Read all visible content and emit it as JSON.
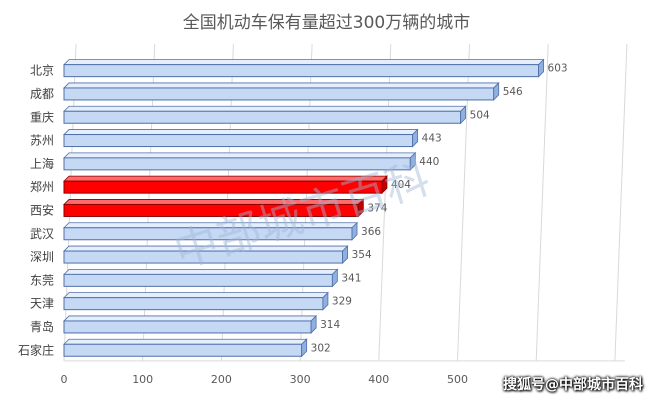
{
  "chart_data": {
    "type": "bar",
    "orientation": "horizontal",
    "title": "全国机动车保有量超过300万辆的城市",
    "categories": [
      "北京",
      "成都",
      "重庆",
      "苏州",
      "上海",
      "郑州",
      "西安",
      "武汉",
      "深圳",
      "东莞",
      "天津",
      "青岛",
      "石家庄"
    ],
    "values": [
      603,
      546,
      504,
      443,
      440,
      404,
      374,
      366,
      354,
      341,
      329,
      314,
      302
    ],
    "highlighted": [
      "郑州",
      "西安"
    ],
    "xlim": [
      0,
      700
    ],
    "xticks": [
      0,
      100,
      200,
      300,
      400,
      500
    ],
    "grid": "vertical-3d",
    "colors": {
      "default_bar": "#c5d9f5",
      "default_edge": "#4f6fa8",
      "highlight_bar": "#ff0000",
      "highlight_edge": "#8b0000",
      "grid": "#d9d9d9",
      "label": "#595959"
    }
  },
  "watermark": "中部城市百科",
  "credit": "搜狐号@中部城市百科"
}
